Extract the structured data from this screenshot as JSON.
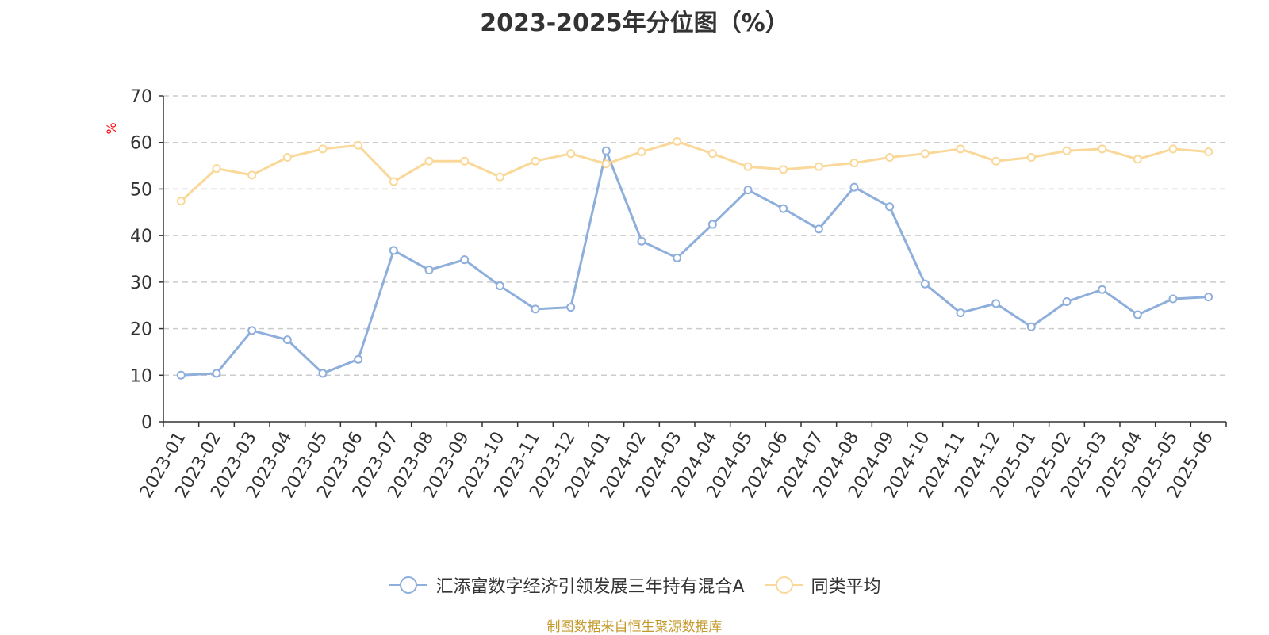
{
  "chart_data": {
    "type": "line",
    "title": "2023-2025年分位图（%）",
    "ylabel": "%",
    "ylim": [
      0,
      70
    ],
    "yticks": [
      0,
      10,
      20,
      30,
      40,
      50,
      60,
      70
    ],
    "grid": true,
    "legend_position": "bottom",
    "categories": [
      "2023-01",
      "2023-02",
      "2023-03",
      "2023-04",
      "2023-05",
      "2023-06",
      "2023-07",
      "2023-08",
      "2023-09",
      "2023-10",
      "2023-11",
      "2023-12",
      "2024-01",
      "2024-02",
      "2024-03",
      "2024-04",
      "2024-05",
      "2024-06",
      "2024-07",
      "2024-08",
      "2024-09",
      "2024-10",
      "2024-11",
      "2024-12",
      "2025-01",
      "2025-02",
      "2025-03",
      "2025-04",
      "2025-05",
      "2025-06"
    ],
    "series": [
      {
        "name": "汇添富数字经济引领发展三年持有混合A",
        "color": "#8eaedb",
        "values": [
          10,
          10.4,
          19.6,
          17.6,
          10.4,
          13.4,
          36.8,
          32.6,
          34.8,
          29.2,
          24.2,
          24.6,
          58.2,
          38.8,
          35.2,
          42.4,
          49.8,
          45.8,
          41.4,
          50.4,
          46.2,
          29.6,
          23.4,
          25.4,
          20.4,
          25.8,
          28.4,
          23.0,
          26.4,
          26.8
        ]
      },
      {
        "name": "同类平均",
        "color": "#f9d899",
        "values": [
          47.4,
          54.4,
          53.0,
          56.8,
          58.6,
          59.4,
          51.6,
          56.0,
          56.0,
          52.6,
          56.0,
          57.6,
          55.4,
          58.0,
          60.2,
          57.6,
          54.8,
          54.2,
          54.8,
          55.6,
          56.8,
          57.6,
          58.6,
          56.0,
          56.8,
          58.2,
          58.6,
          56.4,
          58.6,
          58.0
        ]
      }
    ]
  },
  "source_note": "制图数据来自恒生聚源数据库"
}
